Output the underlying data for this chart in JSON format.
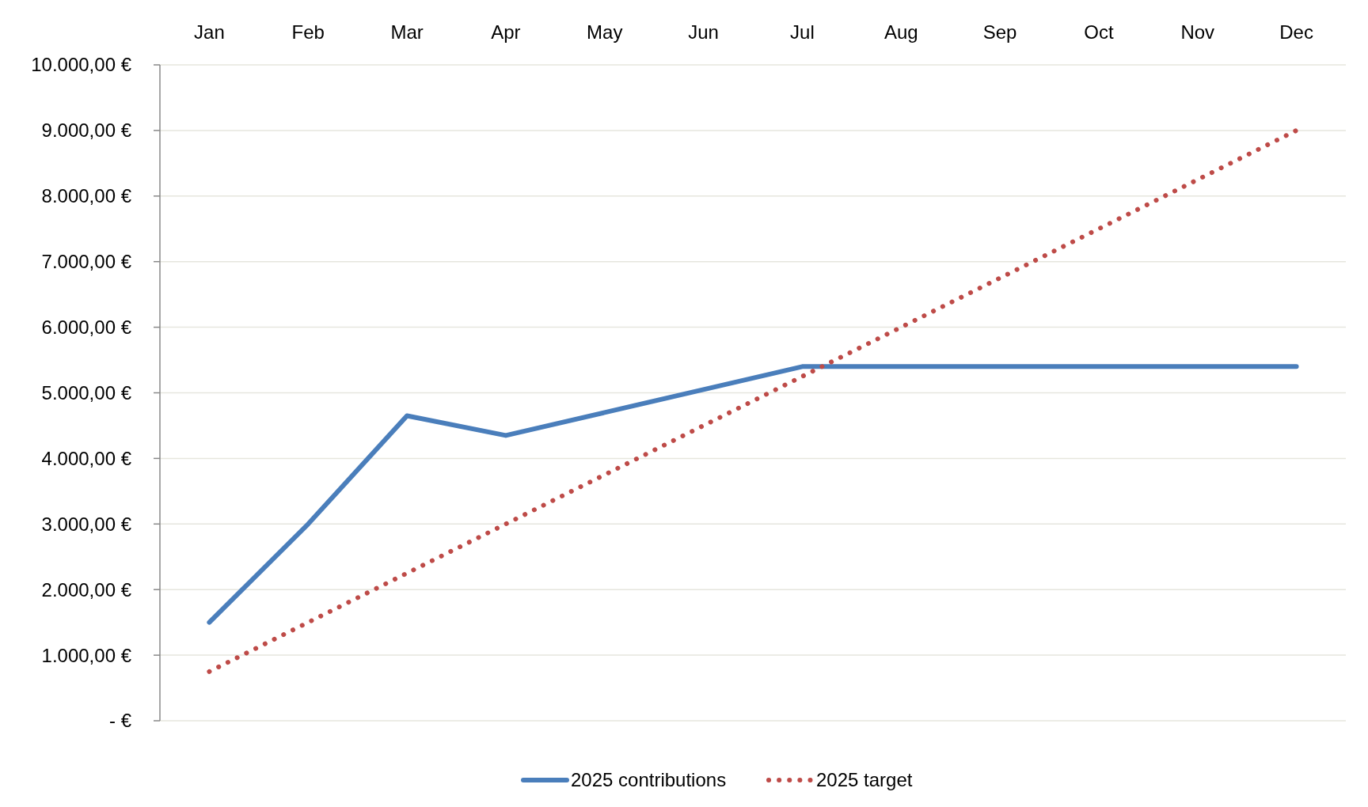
{
  "chart_data": {
    "type": "line",
    "categories": [
      "Jan",
      "Feb",
      "Mar",
      "Apr",
      "May",
      "Jun",
      "Jul",
      "Aug",
      "Sep",
      "Oct",
      "Nov",
      "Dec"
    ],
    "series": [
      {
        "name": "2025 contributions",
        "color": "#4a7ebb",
        "line_style": "solid",
        "values": [
          1500,
          3000,
          4650,
          4350,
          4700,
          5050,
          5400,
          5400,
          5400,
          5400,
          5400,
          5400
        ]
      },
      {
        "name": "2025 target",
        "color": "#be4b48",
        "line_style": "dotted",
        "values": [
          750,
          1500,
          2250,
          3000,
          3750,
          4500,
          5250,
          6000,
          6750,
          7500,
          8250,
          9000
        ]
      }
    ],
    "ylim": [
      0,
      10000
    ],
    "yticks": [
      {
        "value": 0,
        "label": "-   €"
      },
      {
        "value": 1000,
        "label": "1.000,00 €"
      },
      {
        "value": 2000,
        "label": "2.000,00 €"
      },
      {
        "value": 3000,
        "label": "3.000,00 €"
      },
      {
        "value": 4000,
        "label": "4.000,00 €"
      },
      {
        "value": 5000,
        "label": "5.000,00 €"
      },
      {
        "value": 6000,
        "label": "6.000,00 €"
      },
      {
        "value": 7000,
        "label": "7.000,00 €"
      },
      {
        "value": 8000,
        "label": "8.000,00 €"
      },
      {
        "value": 9000,
        "label": "9.000,00 €"
      },
      {
        "value": 10000,
        "label": "10.000,00 €"
      }
    ],
    "grid": "y",
    "legend": "bottom",
    "marker": "none"
  }
}
